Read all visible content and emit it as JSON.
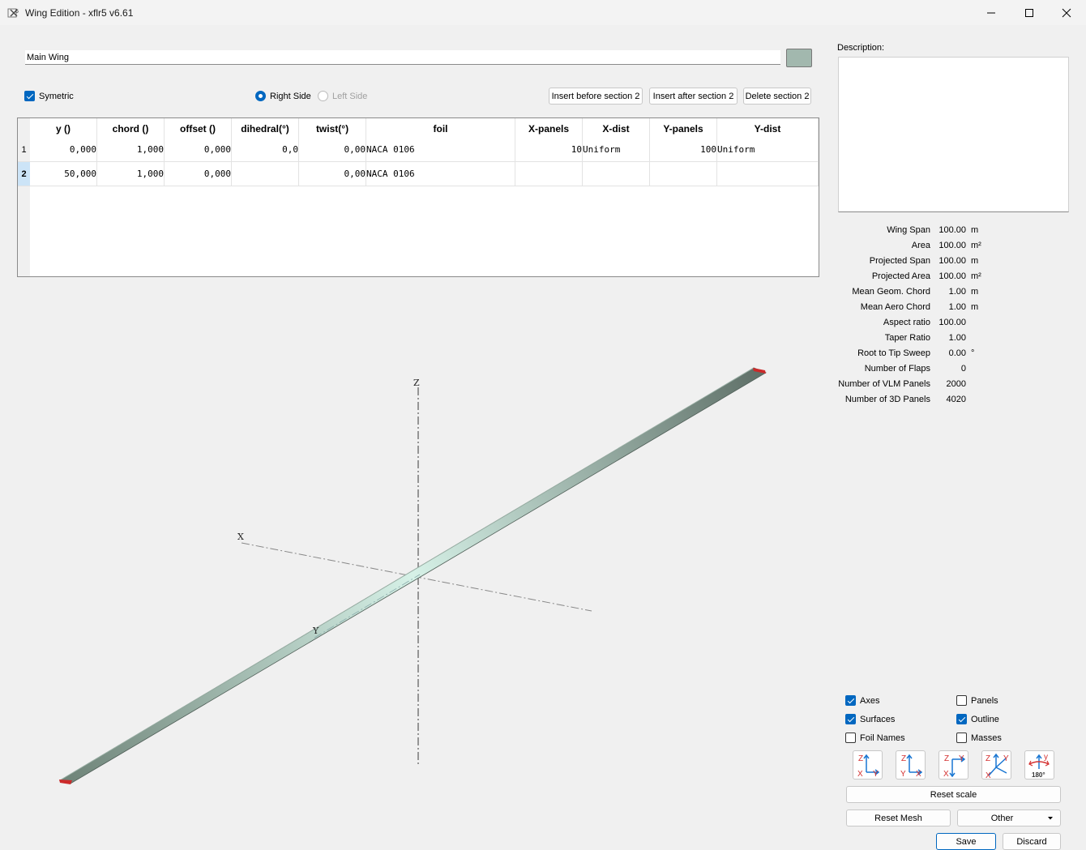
{
  "window": {
    "title": "Wing Edition - xflr5 v6.61"
  },
  "wing": {
    "name": "Main Wing",
    "color": "#a2b8ae"
  },
  "options": {
    "symetric": "Symetric",
    "right_side": "Right Side",
    "left_side": "Left Side"
  },
  "buttons": {
    "insert_before": "Insert before section 2",
    "insert_after": "Insert after section 2",
    "delete_section": "Delete section 2",
    "reset_scale": "Reset scale",
    "reset_mesh": "Reset Mesh",
    "other": "Other",
    "save": "Save",
    "discard": "Discard"
  },
  "table": {
    "headers": [
      "y ()",
      "chord ()",
      "offset ()",
      "dihedral(°)",
      "twist(°)",
      "foil",
      "X-panels",
      "X-dist",
      "Y-panels",
      "Y-dist"
    ],
    "rows": [
      {
        "num": "1",
        "y": "0,000",
        "chord": "1,000",
        "offset": "0,000",
        "dihedral": "0,0",
        "twist": "0,00",
        "foil": "NACA 0106",
        "xpanels": "10",
        "xdist": "Uniform",
        "ypanels": "100",
        "ydist": "Uniform"
      },
      {
        "num": "2",
        "y": "50,000",
        "chord": "1,000",
        "offset": "0,000",
        "dihedral": "",
        "twist": "0,00",
        "foil": "NACA 0106",
        "xpanels": "",
        "xdist": "",
        "ypanels": "",
        "ydist": ""
      }
    ]
  },
  "description": {
    "label": "Description:",
    "text": ""
  },
  "properties": [
    {
      "label": "Wing Span",
      "value": "100.00",
      "unit": "m"
    },
    {
      "label": "Area",
      "value": "100.00",
      "unit": "m²"
    },
    {
      "label": "Projected Span",
      "value": "100.00",
      "unit": "m"
    },
    {
      "label": "Projected Area",
      "value": "100.00",
      "unit": "m²"
    },
    {
      "label": "Mean Geom. Chord",
      "value": "1.00",
      "unit": "m"
    },
    {
      "label": "Mean Aero Chord",
      "value": "1.00",
      "unit": "m"
    },
    {
      "label": "Aspect ratio",
      "value": "100.00",
      "unit": ""
    },
    {
      "label": "Taper Ratio",
      "value": "1.00",
      "unit": ""
    },
    {
      "label": "Root to Tip Sweep",
      "value": "0.00",
      "unit": "°"
    },
    {
      "label": "Number of Flaps",
      "value": "0",
      "unit": ""
    },
    {
      "label": "Number of VLM Panels",
      "value": "2000",
      "unit": ""
    },
    {
      "label": "Number of 3D Panels",
      "value": "4020",
      "unit": ""
    }
  ],
  "display": {
    "axes": "Axes",
    "panels": "Panels",
    "surfaces": "Surfaces",
    "outline": "Outline",
    "foil_names": "Foil Names",
    "masses": "Masses"
  },
  "axis_labels": {
    "x": "X",
    "y": "Y",
    "z": "Z"
  },
  "view_icons": [
    {
      "name": "front-view-icon",
      "top_left": "Z",
      "bottom_left": "X",
      "bottom_right": "Y"
    },
    {
      "name": "side-view-icon",
      "top_left": "Z",
      "bottom_left": "Y",
      "bottom_right": "X"
    },
    {
      "name": "top-view-icon",
      "top_left": "Z",
      "top_right": "Y",
      "bottom_left": "X"
    },
    {
      "name": "iso-view-icon",
      "top_left": "Z",
      "top_right": "Y",
      "bottom_left": "X"
    },
    {
      "name": "flip-view-icon",
      "top_right": "y",
      "bottom": "180°"
    }
  ]
}
